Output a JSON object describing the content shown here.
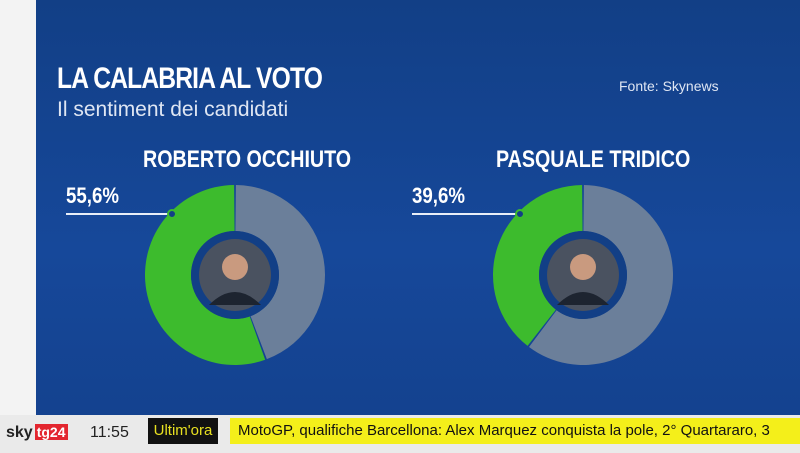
{
  "header": {
    "title": "LA CALABRIA AL VOTO",
    "subtitle": "Il sentiment dei candidati",
    "source": "Fonte: Skynews"
  },
  "chart_data": {
    "type": "pie",
    "title": "Il sentiment dei candidati",
    "series": [
      {
        "name": "ROBERTO OCCHIUTO",
        "value": 55.6,
        "label": "55,6%"
      },
      {
        "name": "PASQUALE TRIDICO",
        "value": 39.6,
        "label": "39,6%"
      }
    ],
    "colors": {
      "value": "#3dbb2d",
      "rest": "#6b7f9a"
    }
  },
  "bar": {
    "brand": "sky",
    "channel": "tg24",
    "time": "11:55",
    "flash": "Ultim'ora",
    "ticker": "MotoGP, qualifiche Barcellona: Alex Marquez conquista la pole, 2° Quartararo, 3"
  }
}
